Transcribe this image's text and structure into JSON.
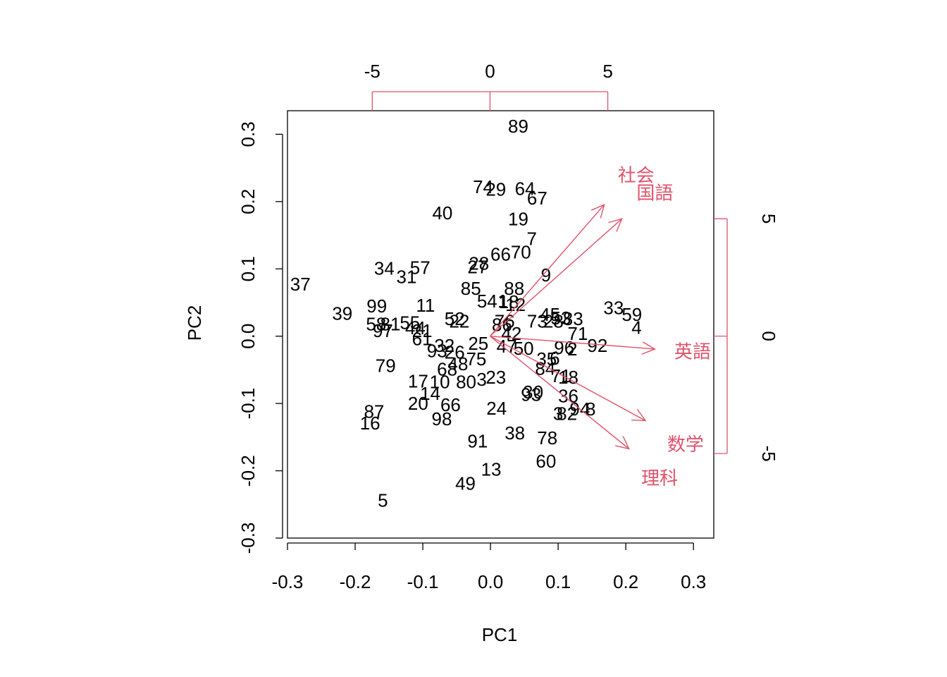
{
  "chart_data": {
    "type": "scatter",
    "subtype": "biplot",
    "title": "",
    "xlabel": "PC1",
    "ylabel": "PC2",
    "xlim": [
      -0.3,
      0.33
    ],
    "ylim": [
      -0.3,
      0.335
    ],
    "x_ticks": [
      "-0.3",
      "-0.2",
      "-0.1",
      "0.0",
      "0.1",
      "0.2",
      "0.3"
    ],
    "y_ticks": [
      "-0.3",
      "-0.2",
      "-0.1",
      "0.0",
      "0.1",
      "0.2",
      "0.3"
    ],
    "top_ticks": [
      "-5",
      "0",
      "5"
    ],
    "right_ticks": [
      "-5",
      "0",
      "5"
    ],
    "loading_lim": [
      -8.6,
      9.5
    ],
    "loading_ylim": [
      -8.6,
      9.6
    ],
    "colors": {
      "points": "#000000",
      "loadings": "#DF536B",
      "frame": "#000000"
    },
    "observations": [
      {
        "label": "89",
        "x": 0.041,
        "y": 0.312
      },
      {
        "label": "74",
        "x": -0.011,
        "y": 0.222
      },
      {
        "label": "29",
        "x": 0.008,
        "y": 0.218
      },
      {
        "label": "64",
        "x": 0.051,
        "y": 0.219
      },
      {
        "label": "67",
        "x": 0.069,
        "y": 0.205
      },
      {
        "label": "40",
        "x": -0.071,
        "y": 0.183
      },
      {
        "label": "19",
        "x": 0.041,
        "y": 0.174
      },
      {
        "label": "7",
        "x": 0.061,
        "y": 0.145
      },
      {
        "label": "66",
        "x": 0.015,
        "y": 0.122
      },
      {
        "label": "70",
        "x": 0.045,
        "y": 0.125
      },
      {
        "label": "27",
        "x": -0.019,
        "y": 0.103
      },
      {
        "label": "28",
        "x": -0.017,
        "y": 0.108
      },
      {
        "label": "9",
        "x": 0.082,
        "y": 0.091
      },
      {
        "label": "34",
        "x": -0.157,
        "y": 0.101
      },
      {
        "label": "57",
        "x": -0.104,
        "y": 0.102
      },
      {
        "label": "31",
        "x": -0.124,
        "y": 0.088
      },
      {
        "label": "37",
        "x": -0.281,
        "y": 0.077
      },
      {
        "label": "85",
        "x": -0.029,
        "y": 0.071
      },
      {
        "label": "88",
        "x": 0.035,
        "y": 0.071
      },
      {
        "label": "54",
        "x": -0.005,
        "y": 0.052
      },
      {
        "label": "1",
        "x": 0.018,
        "y": 0.052
      },
      {
        "label": "18",
        "x": 0.027,
        "y": 0.051
      },
      {
        "label": "12",
        "x": 0.037,
        "y": 0.047
      },
      {
        "label": "99",
        "x": -0.168,
        "y": 0.045
      },
      {
        "label": "11",
        "x": -0.096,
        "y": 0.046
      },
      {
        "label": "39",
        "x": -0.219,
        "y": 0.034
      },
      {
        "label": "33",
        "x": 0.182,
        "y": 0.042
      },
      {
        "label": "59",
        "x": 0.209,
        "y": 0.032
      },
      {
        "label": "4",
        "x": 0.216,
        "y": 0.013
      },
      {
        "label": "45",
        "x": 0.088,
        "y": 0.032
      },
      {
        "label": "53",
        "x": 0.104,
        "y": 0.027
      },
      {
        "label": "83",
        "x": 0.122,
        "y": 0.026
      },
      {
        "label": "73",
        "x": 0.069,
        "y": 0.022
      },
      {
        "label": "28",
        "x": 0.093,
        "y": 0.022
      },
      {
        "label": "52",
        "x": -0.053,
        "y": 0.026
      },
      {
        "label": "22",
        "x": -0.046,
        "y": 0.022
      },
      {
        "label": "58",
        "x": -0.169,
        "y": 0.018
      },
      {
        "label": "81",
        "x": -0.148,
        "y": 0.018
      },
      {
        "label": "55",
        "x": -0.119,
        "y": 0.02
      },
      {
        "label": "44",
        "x": -0.111,
        "y": 0.012
      },
      {
        "label": "97",
        "x": -0.159,
        "y": 0.008
      },
      {
        "label": "21",
        "x": -0.101,
        "y": 0.008
      },
      {
        "label": "86",
        "x": 0.017,
        "y": 0.017
      },
      {
        "label": "76",
        "x": 0.021,
        "y": 0.022
      },
      {
        "label": "42",
        "x": 0.031,
        "y": 0.004
      },
      {
        "label": "71",
        "x": 0.129,
        "y": 0.004
      },
      {
        "label": "61",
        "x": -0.101,
        "y": -0.004
      },
      {
        "label": "25",
        "x": -0.018,
        "y": -0.011
      },
      {
        "label": "47",
        "x": 0.024,
        "y": -0.015
      },
      {
        "label": "50",
        "x": 0.049,
        "y": -0.018
      },
      {
        "label": "96",
        "x": 0.109,
        "y": -0.017
      },
      {
        "label": "2",
        "x": 0.121,
        "y": -0.019
      },
      {
        "label": "92",
        "x": 0.158,
        "y": -0.014
      },
      {
        "label": "93",
        "x": -0.079,
        "y": -0.022
      },
      {
        "label": "32",
        "x": -0.068,
        "y": -0.014
      },
      {
        "label": "26",
        "x": -0.053,
        "y": -0.024
      },
      {
        "label": "75",
        "x": -0.021,
        "y": -0.034
      },
      {
        "label": "35",
        "x": 0.083,
        "y": -0.034
      },
      {
        "label": "6",
        "x": 0.095,
        "y": -0.033
      },
      {
        "label": "79",
        "x": -0.155,
        "y": -0.044
      },
      {
        "label": "68",
        "x": -0.064,
        "y": -0.049
      },
      {
        "label": "48",
        "x": -0.048,
        "y": -0.041
      },
      {
        "label": "84",
        "x": 0.081,
        "y": -0.048
      },
      {
        "label": "71",
        "x": 0.104,
        "y": -0.059
      },
      {
        "label": "18",
        "x": 0.115,
        "y": -0.061
      },
      {
        "label": "17",
        "x": -0.107,
        "y": -0.067
      },
      {
        "label": "10",
        "x": -0.075,
        "y": -0.068
      },
      {
        "label": "80",
        "x": -0.036,
        "y": -0.068
      },
      {
        "label": "3",
        "x": -0.013,
        "y": -0.064
      },
      {
        "label": "23",
        "x": 0.008,
        "y": -0.061
      },
      {
        "label": "14",
        "x": -0.089,
        "y": -0.085
      },
      {
        "label": "20",
        "x": -0.107,
        "y": -0.1
      },
      {
        "label": "66",
        "x": -0.059,
        "y": -0.102
      },
      {
        "label": "30",
        "x": 0.063,
        "y": -0.083
      },
      {
        "label": "93",
        "x": 0.06,
        "y": -0.087
      },
      {
        "label": "36",
        "x": 0.115,
        "y": -0.089
      },
      {
        "label": "24",
        "x": 0.009,
        "y": -0.107
      },
      {
        "label": "3",
        "x": 0.1,
        "y": -0.115
      },
      {
        "label": "82",
        "x": 0.113,
        "y": -0.115
      },
      {
        "label": "94",
        "x": 0.132,
        "y": -0.108
      },
      {
        "label": "8",
        "x": 0.148,
        "y": -0.108
      },
      {
        "label": "87",
        "x": -0.172,
        "y": -0.112
      },
      {
        "label": "16",
        "x": -0.178,
        "y": -0.129
      },
      {
        "label": "98",
        "x": -0.072,
        "y": -0.123
      },
      {
        "label": "38",
        "x": 0.036,
        "y": -0.144
      },
      {
        "label": "78",
        "x": 0.084,
        "y": -0.151
      },
      {
        "label": "91",
        "x": -0.019,
        "y": -0.156
      },
      {
        "label": "60",
        "x": 0.082,
        "y": -0.186
      },
      {
        "label": "13",
        "x": 0.001,
        "y": -0.198
      },
      {
        "label": "49",
        "x": -0.037,
        "y": -0.219
      },
      {
        "label": "5",
        "x": -0.159,
        "y": -0.244
      }
    ],
    "loadings": [
      {
        "name": "社会",
        "x": 4.85,
        "y": 5.6,
        "label_x": 6.2,
        "label_y": 6.85
      },
      {
        "name": "国語",
        "x": 5.6,
        "y": 5.0,
        "label_x": 7.0,
        "label_y": 6.1
      },
      {
        "name": "英語",
        "x": 7.0,
        "y": -0.55,
        "label_x": 8.6,
        "label_y": -0.65
      },
      {
        "name": "数学",
        "x": 6.6,
        "y": -3.6,
        "label_x": 8.3,
        "label_y": -4.6
      },
      {
        "name": "理科",
        "x": 5.9,
        "y": -4.8,
        "label_x": 7.2,
        "label_y": -6.05
      }
    ]
  }
}
